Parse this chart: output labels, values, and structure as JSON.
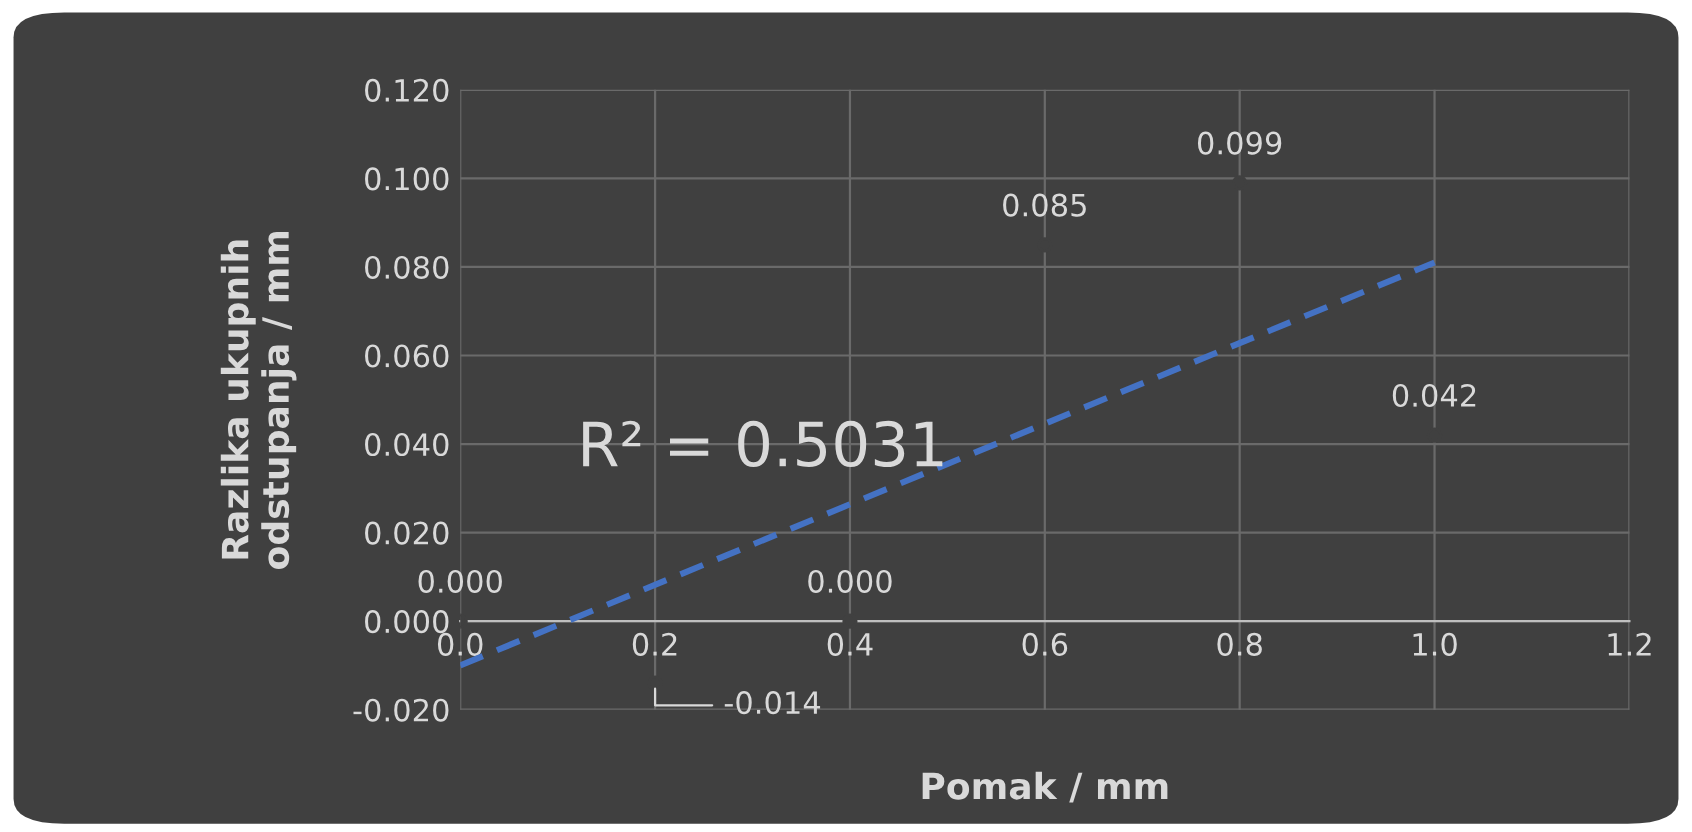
{
  "chart_data": {
    "type": "scatter",
    "xlabel": "Pomak / mm",
    "ylabel": "Razlika ukupnih\nodstupanja / mm",
    "x": [
      0.0,
      0.2,
      0.4,
      0.6,
      0.8,
      1.0
    ],
    "series": [
      {
        "color": "#404040",
        "values": [
          0.0,
          -0.014,
          0.0,
          0.085,
          0.099,
          0.042
        ],
        "value_labels": [
          "0.000",
          "-0.014",
          "0.000",
          "0.085",
          "0.099",
          "0.042"
        ]
      },
      {
        "type": "line",
        "color": "#4472c4",
        "x": [
          0.0,
          1.0
        ],
        "values": [
          -0.01,
          0.081
        ],
        "line_style": "dashed",
        "marker": "none"
      }
    ],
    "annotations": [
      "R² = 0.5031"
    ],
    "xlim": [
      0.0,
      1.2
    ],
    "xticks": [
      {
        "value": 0.0,
        "label": "0.0"
      },
      0.2,
      0.4,
      0.6,
      0.8,
      {
        "value": 1.0,
        "label": "1.0"
      },
      1.2
    ],
    "ylim": [
      -0.02,
      0.12
    ],
    "yticks": [
      {
        "value": -0.02,
        "label": "-0.020"
      },
      {
        "value": 0.0,
        "label": "0.000"
      },
      {
        "value": 0.02,
        "label": "0.020"
      },
      {
        "value": 0.04,
        "label": "0.040"
      },
      {
        "value": 0.06,
        "label": "0.060"
      },
      {
        "value": 0.08,
        "label": "0.080"
      },
      {
        "value": 0.1,
        "label": "0.100"
      },
      {
        "value": 0.12,
        "label": "0.120"
      }
    ],
    "grid": true,
    "legend": false
  }
}
